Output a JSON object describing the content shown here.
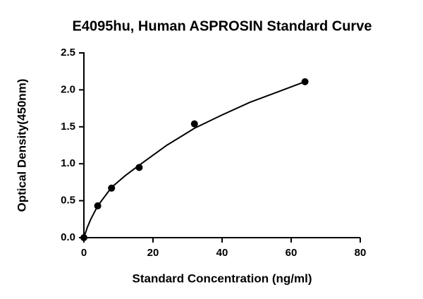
{
  "chart_data": {
    "type": "scatter",
    "title": "E4095hu, Human ASPROSIN Standard Curve",
    "x_label": "Standard Concentration (ng/ml)",
    "y_label": "Optical Density(450nm)",
    "x": [
      0,
      4,
      8,
      16,
      32,
      64
    ],
    "values": [
      0.0,
      0.43,
      0.67,
      0.95,
      1.54,
      2.11
    ],
    "color": "#000000",
    "curve": {
      "x": [
        0,
        1,
        2,
        4,
        8,
        12,
        16,
        24,
        32,
        40,
        48,
        56,
        64
      ],
      "values": [
        0.0,
        0.14,
        0.25,
        0.43,
        0.68,
        0.84,
        0.98,
        1.25,
        1.48,
        1.66,
        1.83,
        1.97,
        2.11
      ]
    },
    "xlim": [
      0,
      80
    ],
    "xticks": [
      0,
      20,
      40,
      60,
      80
    ],
    "ylim": [
      0,
      2.5
    ],
    "yticks": [
      {
        "value": 0,
        "label": "0.0"
      },
      {
        "value": 0.5,
        "label": "0.5"
      },
      {
        "value": 1,
        "label": "1.0"
      },
      {
        "value": 1.5,
        "label": "1.5"
      },
      {
        "value": 2,
        "label": "2.0"
      },
      {
        "value": 2.5,
        "label": "2.5"
      }
    ]
  }
}
